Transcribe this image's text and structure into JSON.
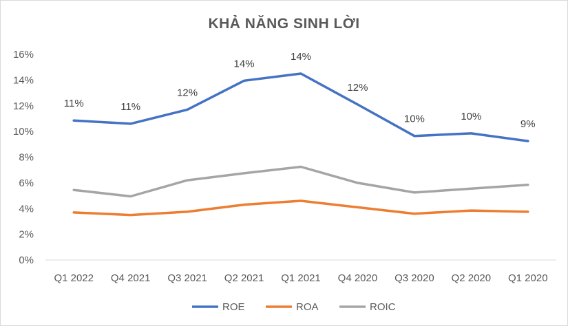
{
  "chart_data": {
    "type": "line",
    "title": "KHẢ NĂNG SINH LỜI",
    "categories": [
      "Q1 2022",
      "Q4 2021",
      "Q3 2021",
      "Q2 2021",
      "Q1 2021",
      "Q4 2020",
      "Q3 2020",
      "Q2 2020",
      "Q1 2020"
    ],
    "series": [
      {
        "name": "ROE",
        "color": "#4472c4",
        "values": [
          10.85,
          10.6,
          11.7,
          13.95,
          14.5,
          12.1,
          9.65,
          9.85,
          9.25
        ],
        "data_labels": [
          "11%",
          "11%",
          "12%",
          "14%",
          "14%",
          "12%",
          "10%",
          "10%",
          "9%"
        ]
      },
      {
        "name": "ROA",
        "color": "#ed7d31",
        "values": [
          3.7,
          3.5,
          3.75,
          4.3,
          4.6,
          4.1,
          3.6,
          3.85,
          3.75
        ]
      },
      {
        "name": "ROIC",
        "color": "#a5a5a5",
        "values": [
          5.45,
          4.95,
          6.2,
          6.75,
          7.25,
          6.0,
          5.25,
          5.55,
          5.85
        ]
      }
    ],
    "y_ticks": [
      "0%",
      "2%",
      "4%",
      "6%",
      "8%",
      "10%",
      "12%",
      "14%",
      "16%"
    ],
    "ylim": [
      0,
      16
    ],
    "grid": false,
    "legend_position": "bottom"
  }
}
